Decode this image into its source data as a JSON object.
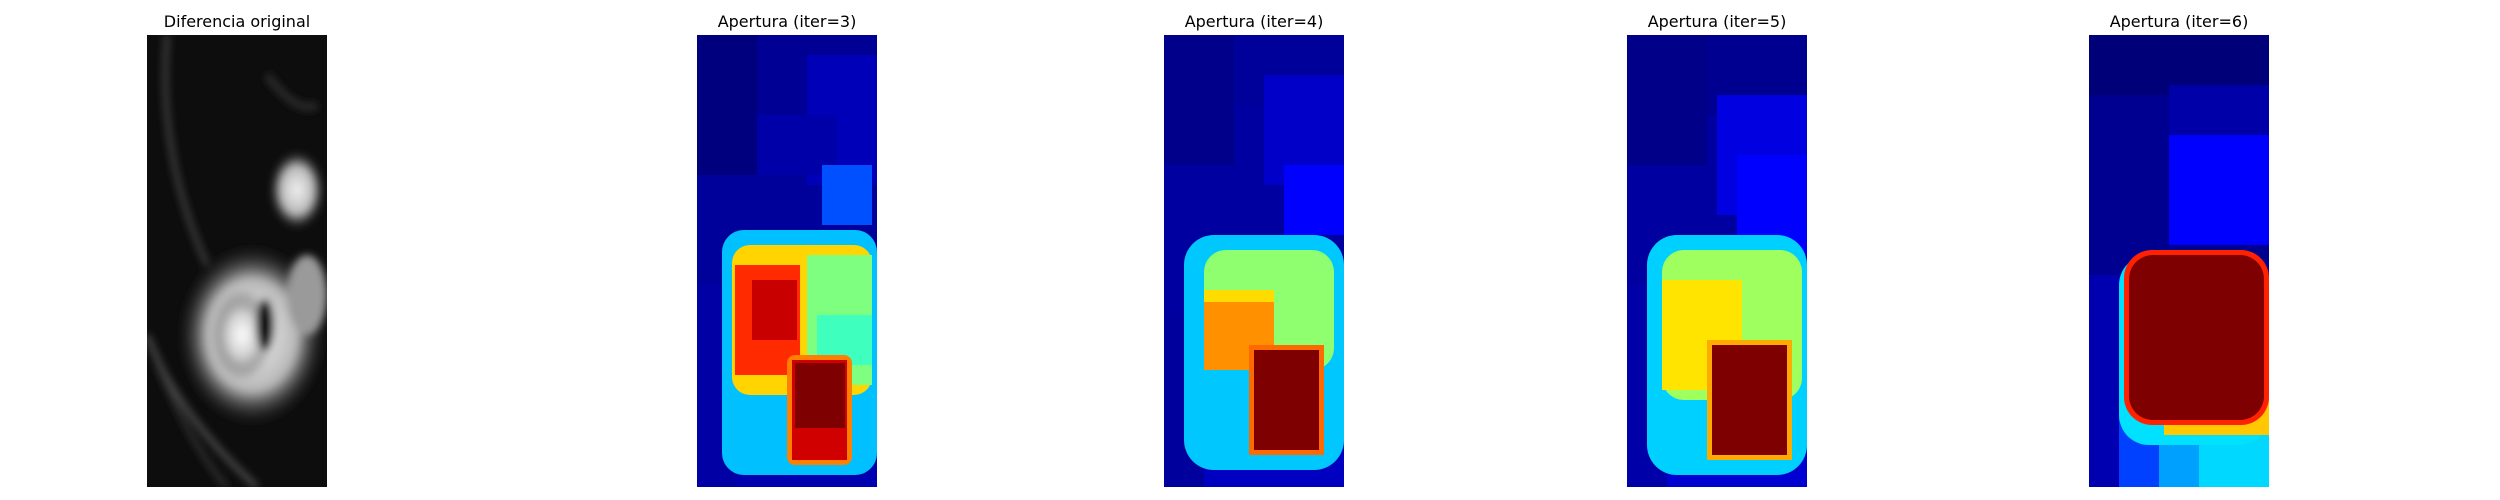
{
  "panels": [
    {
      "title": "Diferencia original"
    },
    {
      "title": "Apertura (iter=3)"
    },
    {
      "title": "Apertura (iter=4)"
    },
    {
      "title": "Apertura (iter=5)"
    },
    {
      "title": "Apertura (iter=6)"
    }
  ],
  "colors": {
    "jet_darkest": "#00007f",
    "jet_blue": "#0000ff",
    "jet_cyan": "#00ffff",
    "jet_green": "#7fff7f",
    "jet_yellow": "#ffff00",
    "jet_orange": "#ff7f00",
    "jet_red": "#ff0000",
    "jet_darkred": "#7f0000",
    "gray_dark": "#0a0a0a",
    "gray_light": "#e6e6e6"
  }
}
